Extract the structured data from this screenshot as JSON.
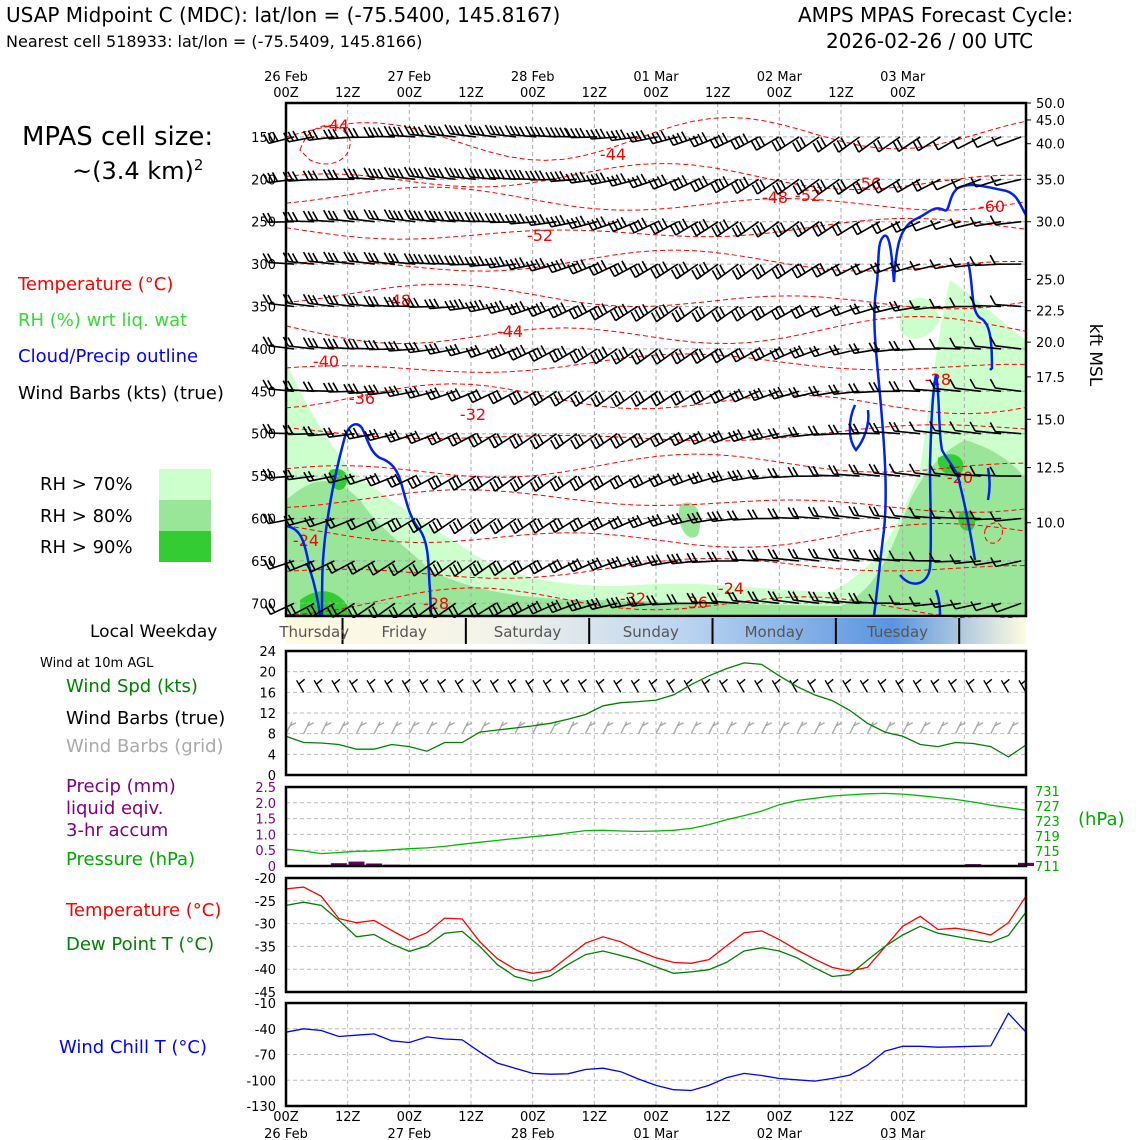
{
  "header": {
    "title": "USAP Midpoint C (MDC): lat/lon = (-75.5400, 145.8167)",
    "subtitle": "Nearest cell 518933: lat/lon = (-75.5409, 145.8166)",
    "forecast_line1": "AMPS MPAS Forecast Cycle:",
    "forecast_line2": "2026-02-26 / 00 UTC"
  },
  "cell_size": {
    "line1": "MPAS cell size:",
    "line2": "~(3.4 km)",
    "exponent": "2"
  },
  "legend": {
    "temperature": "Temperature (°C)",
    "rh": "RH (%) wrt liq. wat",
    "cloud": "Cloud/Precip outline",
    "wind": "Wind Barbs (kts) (true)",
    "rh70": "RH > 70%",
    "rh80": "RH > 80%",
    "rh90": "RH > 90%",
    "rh70_color": "#ccffcc",
    "rh80_color": "#99e699",
    "rh90_color": "#33cc33"
  },
  "panels": {
    "weekday_label": "Local Weekday",
    "wind10_title": "Wind at 10m AGL",
    "wind_spd": "Wind Spd (kts)",
    "wind_barbs_true": "Wind Barbs (true)",
    "wind_barbs_grid": "Wind Barbs (grid)",
    "precip_l1": "Precip (mm)",
    "precip_l2": "liquid eqiv.",
    "precip_l3": "3-hr accum",
    "pressure": "Pressure (hPa)",
    "hpa_unit": "(hPa)",
    "temp": "Temperature (°C)",
    "dew": "Dew Point T (°C)",
    "windchill": "Wind Chill T (°C)"
  },
  "chart_data": {
    "type": "meteogram",
    "x_ticks": [
      "00Z",
      "12Z",
      "00Z",
      "12Z",
      "00Z",
      "12Z",
      "00Z",
      "12Z",
      "00Z",
      "12Z",
      "00Z"
    ],
    "x_dates": [
      "26 Feb",
      "27 Feb",
      "28 Feb",
      "01 Mar",
      "02 Mar",
      "03 Mar"
    ],
    "weekdays": [
      "Thursday",
      "Friday",
      "Saturday",
      "Sunday",
      "Monday",
      "Tuesday"
    ],
    "upper_air": {
      "pressure_ticks": [
        "150",
        "200",
        "250",
        "300",
        "350",
        "400",
        "450",
        "500",
        "550",
        "600",
        "650",
        "700"
      ],
      "pressure_range": [
        110,
        715
      ],
      "kft_labels": [
        "50.0",
        "45.0",
        "40.0",
        "35.0",
        "30.0",
        "25.0",
        "22.5",
        "20.0",
        "17.5",
        "15.0",
        "12.5",
        "10.0"
      ],
      "kft_pressures": [
        110,
        130,
        158,
        200,
        250,
        318,
        355,
        392,
        433,
        483,
        540,
        605
      ],
      "right_label": "kft MSL",
      "temp_labels": [
        "-44",
        "-44",
        "-56",
        "-48",
        "-52",
        "-60",
        "-52",
        "-48",
        "-44",
        "-40",
        "-28",
        "-36",
        "-32",
        "-20",
        "-24",
        "-28",
        "-32",
        "-36",
        "-24"
      ]
    },
    "wind10": {
      "ylim": [
        0,
        24
      ],
      "yticks": [
        "0",
        "4",
        "8",
        "12",
        "16",
        "20",
        "24"
      ],
      "speed_kts": [
        7.5,
        6.3,
        6.2,
        5.9,
        5.0,
        5.0,
        5.9,
        5.5,
        4.6,
        6.3,
        6.3,
        8.3,
        8.7,
        9.1,
        9.5,
        10.0,
        10.8,
        11.7,
        13.4,
        14.0,
        14.2,
        14.5,
        15.5,
        17.5,
        19.2,
        20.6,
        21.7,
        21.4,
        19.2,
        17.1,
        15.5,
        14.4,
        12.5,
        10.0,
        8.3,
        7.5,
        5.9,
        5.5,
        6.3,
        6.1,
        5.5,
        3.5,
        5.8
      ]
    },
    "precip": {
      "ylim": [
        0,
        2.5
      ],
      "yticks": [
        "0",
        "0.5",
        "1.0",
        "1.5",
        "2.0",
        "2.5"
      ],
      "bars_mm": [
        0,
        0,
        0,
        0.09,
        0.14,
        0.08,
        0.04,
        0,
        0,
        0,
        0,
        0,
        0,
        0,
        0,
        0,
        0,
        0,
        0,
        0,
        0,
        0,
        0,
        0,
        0,
        0,
        0,
        0,
        0,
        0,
        0,
        0,
        0,
        0,
        0,
        0,
        0,
        0,
        0,
        0.06,
        0,
        0,
        0.1
      ]
    },
    "pressure": {
      "ylim": [
        711,
        732
      ],
      "yticks": [
        "711",
        "715",
        "719",
        "723",
        "727",
        "731"
      ],
      "values_hpa": [
        715.5,
        715.0,
        714.3,
        714.6,
        714.9,
        715.0,
        715.3,
        715.6,
        715.8,
        716.2,
        716.8,
        717.3,
        717.8,
        718.3,
        718.8,
        719.2,
        719.8,
        720.4,
        720.5,
        720.3,
        720.2,
        720.3,
        720.5,
        721.0,
        722.0,
        723.3,
        724.4,
        725.6,
        727.3,
        728.4,
        729.0,
        729.6,
        729.9,
        730.2,
        730.3,
        730.1,
        729.7,
        729.2,
        728.7,
        728.0,
        727.2,
        726.5,
        725.8
      ]
    },
    "temp_dew": {
      "ylim": [
        -45,
        -20
      ],
      "yticks": [
        "-20",
        "-25",
        "-30",
        "-35",
        "-40",
        "-45"
      ],
      "temperature": [
        -22.4,
        -22.0,
        -24.0,
        -28.9,
        -29.8,
        -29.3,
        -31.5,
        -33.6,
        -32.0,
        -28.8,
        -29.0,
        -34.0,
        -37.7,
        -40.0,
        -40.9,
        -40.3,
        -37.3,
        -34.3,
        -32.9,
        -34.0,
        -36.0,
        -37.5,
        -38.5,
        -38.7,
        -37.9,
        -34.9,
        -32.0,
        -31.6,
        -33.5,
        -35.8,
        -37.8,
        -39.6,
        -40.4,
        -39.6,
        -35.1,
        -30.6,
        -28.4,
        -31.3,
        -31.0,
        -31.6,
        -32.5,
        -29.8,
        -24.0
      ],
      "dewpoint": [
        -26.0,
        -25.3,
        -26.0,
        -29.3,
        -32.9,
        -32.4,
        -34.5,
        -36.1,
        -34.9,
        -32.1,
        -31.7,
        -35.0,
        -39.0,
        -41.6,
        -42.6,
        -41.5,
        -39.0,
        -36.8,
        -36.0,
        -37.0,
        -38.0,
        -39.5,
        -40.9,
        -40.6,
        -40.1,
        -38.5,
        -36.0,
        -35.3,
        -36.0,
        -37.5,
        -39.7,
        -41.6,
        -41.2,
        -38.0,
        -35.0,
        -32.5,
        -30.6,
        -32.1,
        -32.8,
        -33.5,
        -34.1,
        -32.6,
        -27.5
      ]
    },
    "windchill": {
      "ylim": [
        -130,
        -10
      ],
      "yticks": [
        "-10",
        "-40",
        "-70",
        "-100",
        "-130"
      ],
      "values": [
        -44.0,
        -40.0,
        -42.0,
        -49.0,
        -47.5,
        -46.0,
        -54.0,
        -56.0,
        -49.5,
        -52.0,
        -53.0,
        -67.0,
        -80.0,
        -86.0,
        -92.0,
        -93.0,
        -92.5,
        -87.5,
        -86.0,
        -90.0,
        -98.5,
        -106.0,
        -111.0,
        -112.0,
        -106.0,
        -97.0,
        -92.0,
        -94.5,
        -98.0,
        -99.5,
        -101.0,
        -98.0,
        -94.0,
        -82.5,
        -66.0,
        -60.5,
        -60.5,
        -61.5,
        -61.0,
        -60.5,
        -60.0,
        -22.0,
        -44.0
      ]
    },
    "colors": {
      "wind_speed": "#008000",
      "pressure": "#00bb00",
      "precip": "#660066",
      "temperature": "#ff0000",
      "dewpoint": "#008000",
      "windchill": "#0000ff",
      "cloud": "#0022ee",
      "grid_barbs": "#aaaaaa"
    }
  }
}
